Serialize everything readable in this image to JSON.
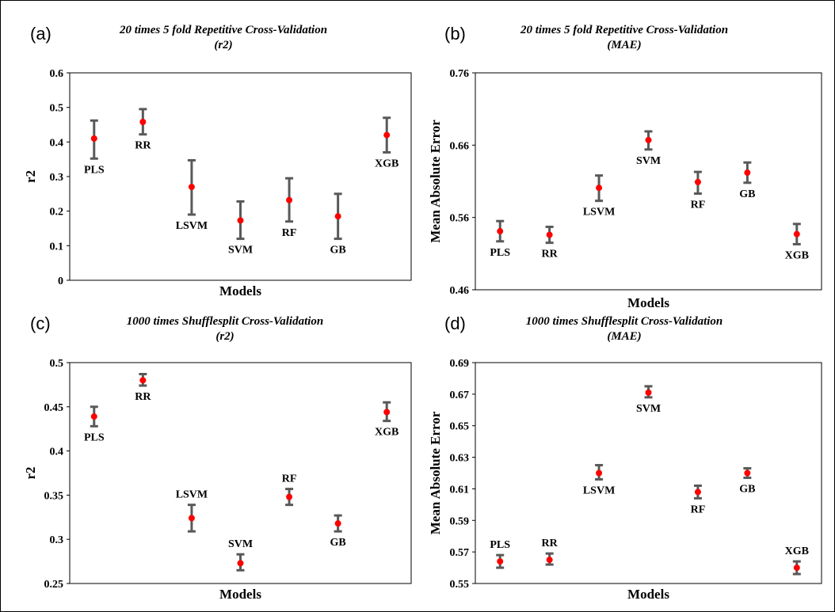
{
  "colors": {
    "point": "#ff0000",
    "error_bar": "#595959",
    "frame": "#000000"
  },
  "chart_data": [
    {
      "panel": "(a)",
      "type": "scatter",
      "title": [
        "20 times 5 fold Repetitive Cross-Validation",
        "(r2)"
      ],
      "xlabel": "Models",
      "ylabel": "r2",
      "ylim": [
        0,
        0.6
      ],
      "yticks": [
        "0",
        "0.1",
        "0.2",
        "0.3",
        "0.4",
        "0.5",
        "0.6"
      ],
      "grid": false,
      "categories": [
        "PLS",
        "RR",
        "LSVM",
        "SVM",
        "RF",
        "GB",
        "XGB"
      ],
      "values": [
        0.41,
        0.458,
        0.27,
        0.173,
        0.232,
        0.185,
        0.42
      ],
      "err_low": [
        0.352,
        0.422,
        0.19,
        0.12,
        0.17,
        0.12,
        0.37
      ],
      "err_high": [
        0.462,
        0.495,
        0.347,
        0.228,
        0.295,
        0.25,
        0.47
      ],
      "label_pos": [
        "below",
        "below",
        "below",
        "below",
        "below",
        "below",
        "below"
      ]
    },
    {
      "panel": "(b)",
      "type": "scatter",
      "title": [
        "20 times 5 fold Repetitive Cross-Validation",
        "(MAE)"
      ],
      "xlabel": "Models",
      "ylabel": "Mean Absolute Error",
      "ylim": [
        0.46,
        0.76
      ],
      "yticks": [
        "0.46",
        "0.56",
        "0.66",
        "0.76"
      ],
      "grid": false,
      "categories": [
        "PLS",
        "RR",
        "LSVM",
        "SVM",
        "RF",
        "GB",
        "XGB"
      ],
      "values": [
        0.541,
        0.536,
        0.601,
        0.667,
        0.609,
        0.622,
        0.537
      ],
      "err_low": [
        0.527,
        0.525,
        0.583,
        0.654,
        0.593,
        0.608,
        0.523
      ],
      "err_high": [
        0.555,
        0.547,
        0.618,
        0.679,
        0.623,
        0.636,
        0.551
      ],
      "label_pos": [
        "below",
        "below",
        "below",
        "below",
        "below",
        "below",
        "below"
      ]
    },
    {
      "panel": "(c)",
      "type": "scatter",
      "title": [
        "1000 times Shufflesplit Cross-Validation",
        "(r2)"
      ],
      "xlabel": "Models",
      "ylabel": "r2",
      "ylim": [
        0.25,
        0.5
      ],
      "yticks": [
        "0.25",
        "0.3",
        "0.35",
        "0.4",
        "0.45",
        "0.5"
      ],
      "grid": false,
      "categories": [
        "PLS",
        "RR",
        "LSVM",
        "SVM",
        "RF",
        "GB",
        "XGB"
      ],
      "values": [
        0.439,
        0.48,
        0.324,
        0.273,
        0.348,
        0.318,
        0.444
      ],
      "err_low": [
        0.428,
        0.474,
        0.309,
        0.265,
        0.339,
        0.309,
        0.434
      ],
      "err_high": [
        0.45,
        0.487,
        0.339,
        0.283,
        0.357,
        0.327,
        0.455
      ],
      "label_pos": [
        "below",
        "below",
        "above",
        "above",
        "above",
        "below",
        "below"
      ]
    },
    {
      "panel": "(d)",
      "type": "scatter",
      "title": [
        "1000 times Shufflesplit Cross-Validation",
        "(MAE)"
      ],
      "xlabel": "Models",
      "ylabel": "Mean Absolute Error",
      "ylim": [
        0.55,
        0.69
      ],
      "yticks": [
        "0.55",
        "0.57",
        "0.59",
        "0.61",
        "0.63",
        "0.65",
        "0.67",
        "0.69"
      ],
      "grid": false,
      "categories": [
        "PLS",
        "RR",
        "LSVM",
        "SVM",
        "RF",
        "GB",
        "XGB"
      ],
      "values": [
        0.564,
        0.565,
        0.62,
        0.671,
        0.608,
        0.62,
        0.56
      ],
      "err_low": [
        0.56,
        0.562,
        0.616,
        0.668,
        0.604,
        0.617,
        0.556
      ],
      "err_high": [
        0.568,
        0.569,
        0.625,
        0.675,
        0.612,
        0.623,
        0.564
      ],
      "label_pos": [
        "above",
        "above",
        "below",
        "below",
        "below",
        "below",
        "above"
      ]
    }
  ]
}
